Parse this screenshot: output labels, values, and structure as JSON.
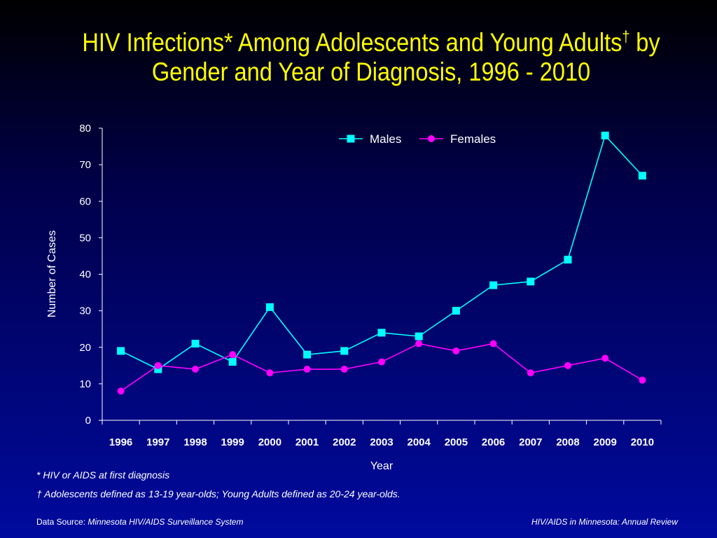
{
  "title_main": "HIV Infections* Among Adolescents and Young Adults",
  "title_dagger": "†",
  "title_end": " by",
  "title_line2": "Gender and Year of Diagnosis, 1996 - 2010",
  "chart_data": {
    "type": "line",
    "x": [
      "1996",
      "1997",
      "1998",
      "1999",
      "2000",
      "2001",
      "2002",
      "2003",
      "2004",
      "2005",
      "2006",
      "2007",
      "2008",
      "2009",
      "2010"
    ],
    "series": [
      {
        "name": "Males",
        "values": [
          19,
          14,
          21,
          16,
          31,
          18,
          19,
          24,
          23,
          30,
          37,
          38,
          44,
          78,
          67
        ],
        "color": "#00ffff",
        "marker": "square"
      },
      {
        "name": "Females",
        "values": [
          8,
          15,
          14,
          18,
          13,
          14,
          14,
          16,
          21,
          19,
          21,
          13,
          15,
          17,
          11
        ],
        "color": "#ff00ff",
        "marker": "circle"
      }
    ],
    "xlabel": "Year",
    "ylabel": "Number of Cases",
    "ylim": [
      0,
      80
    ],
    "yticks": [
      0,
      10,
      20,
      30,
      40,
      50,
      60,
      70,
      80
    ],
    "grid": false,
    "legend_position": "top-center"
  },
  "footnotes": {
    "star_mark": "*",
    "star_text": "HIV or AIDS at first diagnosis",
    "dagger_mark": "†",
    "dagger_text": "Adolescents defined as 13-19 year-olds; Young Adults defined as 20-24 year-olds."
  },
  "source": {
    "label": "Data Source: ",
    "value": "Minnesota HIV/AIDS Surveillance System",
    "right": "HIV/AIDS in Minnesota: Annual Review"
  }
}
